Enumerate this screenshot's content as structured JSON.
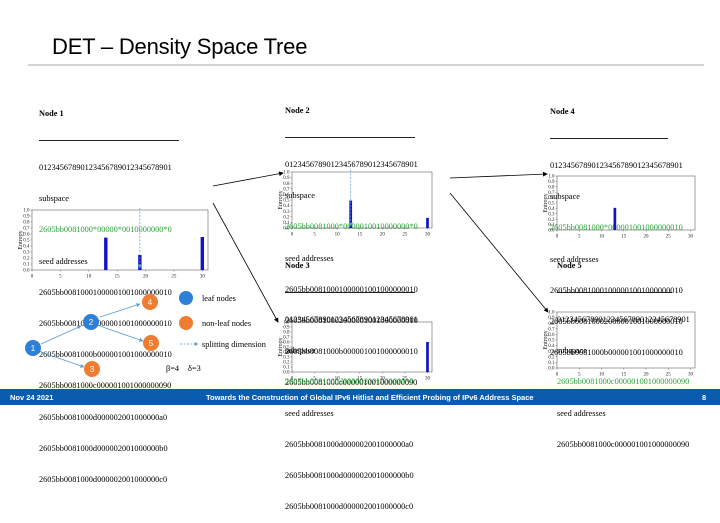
{
  "slide": {
    "title": "DET – Density Space Tree",
    "footer_date": "Nov 24 2021",
    "footer_title": "Towards the Construction of Global IPv6 Hitlist and Efficient Probing of IPv6 Address Space",
    "page_number": "8"
  },
  "colors": {
    "accent_green": "#2ba33a",
    "bar_blue": "#1212c8",
    "node_blue": "#2e7fd6",
    "node_orange": "#ef7d31",
    "footer_blue": "#0c5cad"
  },
  "nodes": [
    {
      "header": "Node 1",
      "index_row": "01234567890123456789012345678901",
      "subspace_label": "subspace",
      "subspace": "2605bb0081000*00000*0010000000*0",
      "seed_label": "seed addresses",
      "seeds": [
        "2605bb00810001000001001000000010",
        "2605bb00810002000001001000000010",
        "2605bb0081000b000001001000000010",
        "2605bb0081000c000001001000000090",
        "2605bb0081000d000002001000000a0",
        "2605bb0081000d000002001000000b0",
        "2605bb0081000d000002001000000c0"
      ]
    },
    {
      "header": "Node 2",
      "index_row": "01234567890123456789012345678901",
      "subspace_label": "subspace",
      "subspace": "2605bb0081000*0000010010000000*0",
      "seed_label": "seed addresses",
      "seeds": [
        "2605bb00810001000001001000000010",
        "2605bb00810002000001001000000010",
        "2605bb0081000b000001001000000010",
        "2605bb0081000c000001001000000090"
      ]
    },
    {
      "header": "Node 3",
      "index_row": "01234567890123456789012345678901",
      "subspace_label": "subspace",
      "subspace": "2605bb0081000d000002001000000*0",
      "seed_label": "seed addresses",
      "seeds": [
        "2605bb0081000d000002001000000a0",
        "2605bb0081000d000002001000000b0",
        "2605bb0081000d000002001000000c0"
      ]
    },
    {
      "header": "Node 4",
      "index_row": "01234567890123456789012345678901",
      "subspace_label": "subspace",
      "subspace": "2605bb0081000*000001001000000010",
      "seed_label": "seed addresses",
      "seeds": [
        "2605bb00810001000001001000000010",
        "2605bb00810002000001001000000010",
        "2605bb0081000b000001001000000010"
      ]
    },
    {
      "header": "Node 5",
      "index_row": "01234567890123456789012345678901",
      "subspace_label": "subspace",
      "subspace": "2605bb0081000c000001001000000090",
      "seed_label": "seed addresses",
      "seeds": [
        "2605bb0081000c000001001000000090"
      ]
    }
  ],
  "chart_data": [
    {
      "type": "bar",
      "ylabel": "Entropy",
      "x_ticks": [
        0,
        5,
        10,
        15,
        20,
        25,
        30
      ],
      "y_ticks": [
        "0.0",
        "0.1",
        "0.2",
        "0.3",
        "0.4",
        "0.5",
        "0.6",
        "0.7",
        "0.8",
        "0.9",
        "1.0"
      ],
      "ylim": [
        0,
        1
      ],
      "xlim": [
        0,
        31
      ],
      "x": [
        13,
        19,
        30
      ],
      "values": [
        0.54,
        0.25,
        0.55
      ],
      "split_dimension": 19
    },
    {
      "type": "bar",
      "ylabel": "Entropy",
      "x_ticks": [
        0,
        5,
        10,
        15,
        20,
        25,
        30
      ],
      "y_ticks": [
        "0.0",
        "0.1",
        "0.2",
        "0.3",
        "0.4",
        "0.5",
        "0.6",
        "0.7",
        "0.8",
        "0.9",
        "1.0"
      ],
      "ylim": [
        0,
        1
      ],
      "xlim": [
        0,
        31
      ],
      "x": [
        13,
        30
      ],
      "values": [
        0.49,
        0.18
      ],
      "split_dimension": 13
    },
    {
      "type": "bar",
      "ylabel": "Entropy",
      "x_ticks": [
        0,
        5,
        10,
        15,
        20,
        25,
        30
      ],
      "y_ticks": [
        "0.0",
        "0.1",
        "0.2",
        "0.3",
        "0.4",
        "0.5",
        "0.6",
        "0.7",
        "0.8",
        "0.9",
        "1.0"
      ],
      "ylim": [
        0,
        1
      ],
      "xlim": [
        0,
        31
      ],
      "x": [
        13
      ],
      "values": [
        0.41
      ]
    },
    {
      "type": "bar",
      "ylabel": "Entropy",
      "x_ticks": [
        0,
        5,
        10,
        15,
        20,
        25,
        30
      ],
      "y_ticks": [
        "0.0",
        "0.1",
        "0.2",
        "0.3",
        "0.4",
        "0.5",
        "0.6",
        "0.7",
        "0.8",
        "0.9",
        "1.0"
      ],
      "ylim": [
        0,
        1
      ],
      "xlim": [
        0,
        31
      ],
      "x": [
        30
      ],
      "values": [
        0.6
      ]
    },
    {
      "type": "bar",
      "ylabel": "Entropy",
      "x_ticks": [
        0,
        5,
        10,
        15,
        20,
        25,
        30
      ],
      "y_ticks": [
        "0.0",
        "0.1",
        "0.2",
        "0.3",
        "0.4",
        "0.5",
        "0.6",
        "0.7",
        "0.8",
        "0.9",
        "1.0"
      ],
      "ylim": [
        0,
        1
      ],
      "xlim": [
        0,
        31
      ],
      "x": [],
      "values": []
    }
  ],
  "tree": {
    "nodes": [
      {
        "label": "1",
        "kind": "non-leaf"
      },
      {
        "label": "2",
        "kind": "non-leaf"
      },
      {
        "label": "3",
        "kind": "leaf"
      },
      {
        "label": "4",
        "kind": "non-leaf"
      },
      {
        "label": "5",
        "kind": "non-leaf"
      }
    ],
    "legend": {
      "leaf": "leaf nodes",
      "non_leaf": "non-leaf nodes",
      "split": "splitting  dimension",
      "beta": "β=4",
      "delta": "δ=3"
    }
  }
}
